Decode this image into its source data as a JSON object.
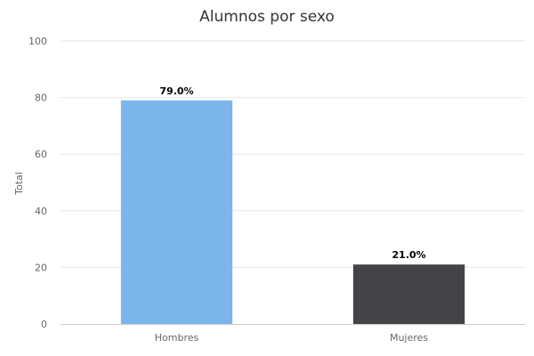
{
  "chart_data": {
    "type": "bar",
    "title": "Alumnos por sexo",
    "xlabel": "",
    "ylabel": "Total",
    "categories": [
      "Hombres",
      "Mujeres"
    ],
    "values": [
      79.0,
      21.0
    ],
    "data_labels": [
      "79.0%",
      "21.0%"
    ],
    "colors": [
      "#7cb5ec",
      "#434348"
    ],
    "ylim": [
      0,
      100
    ],
    "yticks": [
      0,
      20,
      40,
      60,
      80,
      100
    ],
    "ytick_labels": [
      "0",
      "20",
      "40",
      "60",
      "80",
      "100"
    ],
    "grid": true,
    "legend": "none"
  }
}
